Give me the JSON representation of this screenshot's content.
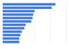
{
  "chart_data": {
    "type": "bar",
    "orientation": "horizontal",
    "categories": [
      null,
      null,
      null,
      null,
      null,
      null,
      null,
      null,
      null,
      null,
      null,
      null
    ],
    "values": [
      83,
      77,
      50,
      48,
      47,
      45,
      36,
      34,
      30,
      28,
      26,
      26
    ],
    "color": "#3f7ad6",
    "xlim": [
      0,
      100
    ],
    "xticks": [
      0,
      25,
      50,
      75,
      100
    ],
    "grid": true,
    "tick_labels": false
  }
}
